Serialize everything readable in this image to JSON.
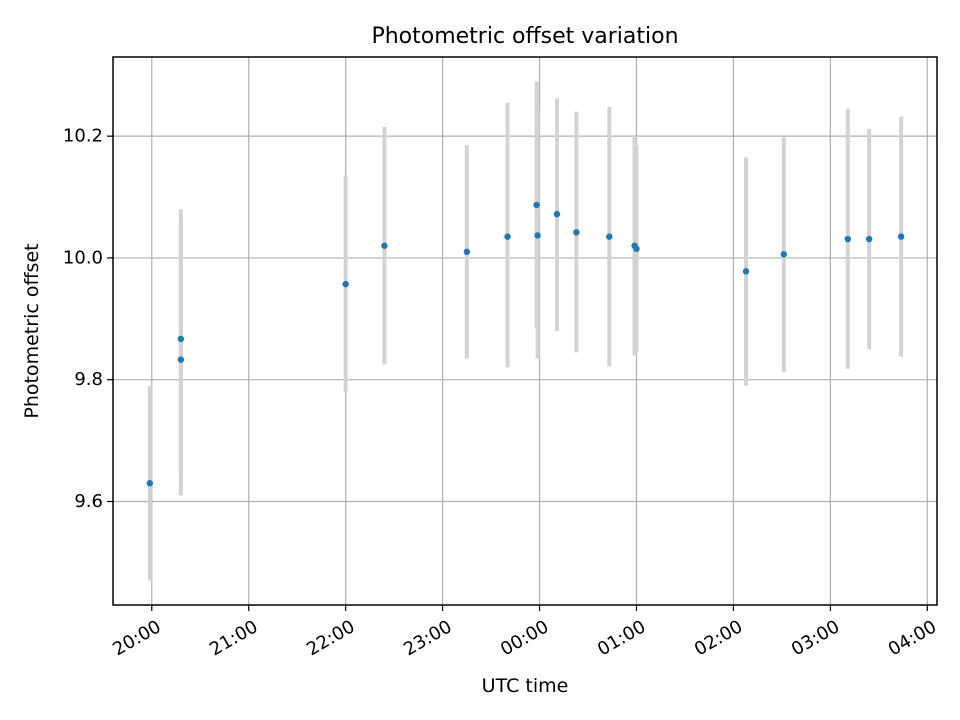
{
  "chart_data": {
    "type": "scatter",
    "title": "Photometric offset variation",
    "xlabel": "UTC time",
    "ylabel": "Photometric offset",
    "x_unit": "hours (UTC, continuing past midnight)",
    "xlim": [
      19.6,
      28.1
    ],
    "ylim": [
      9.43,
      10.33
    ],
    "x_ticks": [
      {
        "value": 20,
        "label": "20:00"
      },
      {
        "value": 21,
        "label": "21:00"
      },
      {
        "value": 22,
        "label": "22:00"
      },
      {
        "value": 23,
        "label": "23:00"
      },
      {
        "value": 24,
        "label": "00:00"
      },
      {
        "value": 25,
        "label": "01:00"
      },
      {
        "value": 26,
        "label": "02:00"
      },
      {
        "value": 27,
        "label": "03:00"
      },
      {
        "value": 28,
        "label": "04:00"
      }
    ],
    "y_ticks": [
      {
        "value": 9.6,
        "label": "9.6"
      },
      {
        "value": 9.8,
        "label": "9.8"
      },
      {
        "value": 10.0,
        "label": "10.0"
      },
      {
        "value": 10.2,
        "label": "10.2"
      }
    ],
    "grid": true,
    "point_color": "#1f77b4",
    "errorbar_color": "#d3d3d3",
    "points": [
      {
        "x": 19.98,
        "y": 9.63,
        "ylow": 9.47,
        "yhigh": 9.79
      },
      {
        "x": 20.3,
        "y": 9.867,
        "ylow": 9.65,
        "yhigh": 10.08
      },
      {
        "x": 20.3,
        "y": 9.833,
        "ylow": 9.61,
        "yhigh": 10.055
      },
      {
        "x": 22.0,
        "y": 9.957,
        "ylow": 9.78,
        "yhigh": 10.135
      },
      {
        "x": 22.4,
        "y": 10.02,
        "ylow": 9.825,
        "yhigh": 10.215
      },
      {
        "x": 23.25,
        "y": 10.01,
        "ylow": 9.835,
        "yhigh": 10.185
      },
      {
        "x": 23.67,
        "y": 10.035,
        "ylow": 9.82,
        "yhigh": 10.255
      },
      {
        "x": 23.97,
        "y": 10.087,
        "ylow": 9.885,
        "yhigh": 10.29
      },
      {
        "x": 23.98,
        "y": 10.037,
        "ylow": 9.835,
        "yhigh": 10.24
      },
      {
        "x": 24.18,
        "y": 10.072,
        "ylow": 9.88,
        "yhigh": 10.262
      },
      {
        "x": 24.38,
        "y": 10.042,
        "ylow": 9.845,
        "yhigh": 10.24
      },
      {
        "x": 24.72,
        "y": 10.035,
        "ylow": 9.822,
        "yhigh": 10.248
      },
      {
        "x": 24.98,
        "y": 10.02,
        "ylow": 9.84,
        "yhigh": 10.2
      },
      {
        "x": 25.0,
        "y": 10.015,
        "ylow": 9.845,
        "yhigh": 10.185
      },
      {
        "x": 26.13,
        "y": 9.978,
        "ylow": 9.79,
        "yhigh": 10.165
      },
      {
        "x": 26.52,
        "y": 10.006,
        "ylow": 9.812,
        "yhigh": 10.198
      },
      {
        "x": 27.18,
        "y": 10.031,
        "ylow": 9.818,
        "yhigh": 10.245
      },
      {
        "x": 27.4,
        "y": 10.031,
        "ylow": 9.85,
        "yhigh": 10.212
      },
      {
        "x": 27.73,
        "y": 10.035,
        "ylow": 9.838,
        "yhigh": 10.232
      }
    ]
  }
}
